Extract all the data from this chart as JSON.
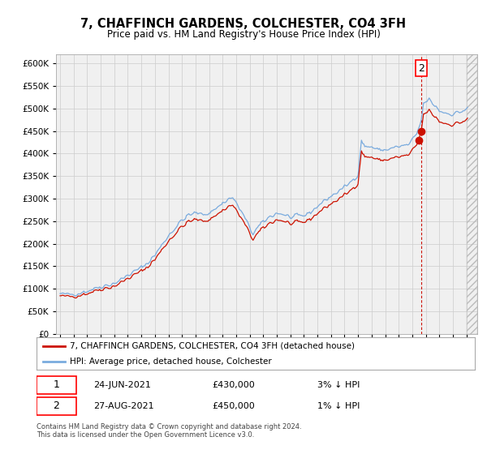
{
  "title": "7, CHAFFINCH GARDENS, COLCHESTER, CO4 3FH",
  "subtitle": "Price paid vs. HM Land Registry's House Price Index (HPI)",
  "ylim": [
    0,
    620000
  ],
  "yticks": [
    0,
    50000,
    100000,
    150000,
    200000,
    250000,
    300000,
    350000,
    400000,
    450000,
    500000,
    550000,
    600000
  ],
  "legend_line1": "7, CHAFFINCH GARDENS, COLCHESTER, CO4 3FH (detached house)",
  "legend_line2": "HPI: Average price, detached house, Colchester",
  "transaction1_date": "24-JUN-2021",
  "transaction1_price": "£430,000",
  "transaction1_hpi": "3% ↓ HPI",
  "transaction1_year": 2021.46,
  "transaction1_value": 430000,
  "transaction2_date": "27-AUG-2021",
  "transaction2_price": "£450,000",
  "transaction2_hpi": "1% ↓ HPI",
  "transaction2_year": 2021.65,
  "transaction2_value": 450000,
  "footnote": "Contains HM Land Registry data © Crown copyright and database right 2024.\nThis data is licensed under the Open Government Licence v3.0.",
  "hpi_color": "#7aabde",
  "price_color": "#cc1100",
  "grid_color": "#cccccc",
  "bg_color": "#f0f0f0",
  "xlim_left": 1994.7,
  "xlim_right": 2025.8
}
